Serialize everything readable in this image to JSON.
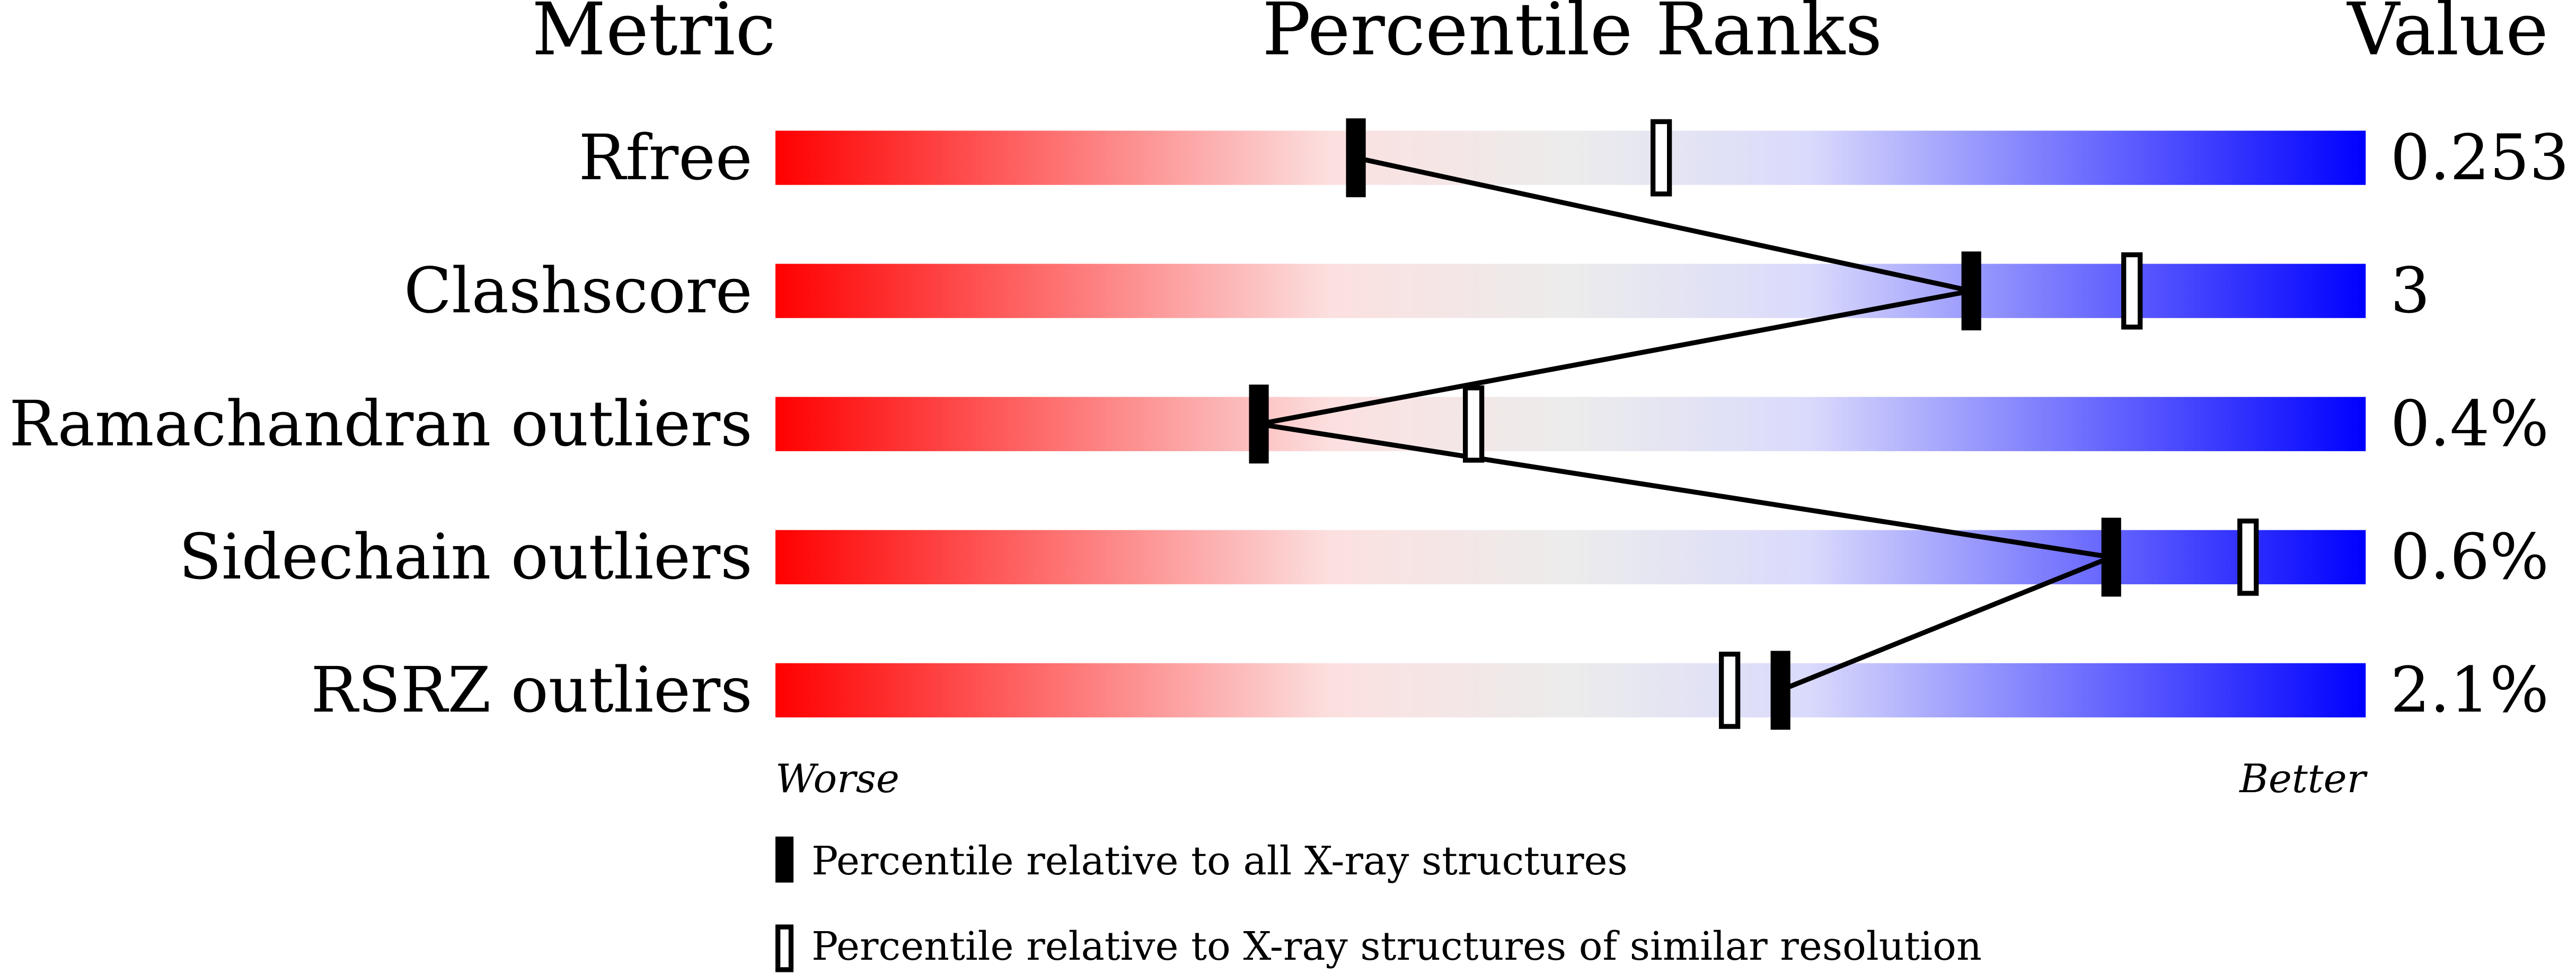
{
  "chart_data": {
    "type": "percentile-slider",
    "headers": {
      "metric": "Metric",
      "ranks": "Percentile Ranks",
      "value": "Value"
    },
    "xlim": [
      0,
      100
    ],
    "axis_labels": {
      "left": "Worse",
      "right": "Better"
    },
    "gradient_colors": {
      "worse": "#ff0000",
      "middle": "#ececec",
      "better": "#0000ff"
    },
    "metrics": [
      {
        "name": "Rfree",
        "value": "0.253",
        "percentile_all": 36.5,
        "percentile_similar": 55.7
      },
      {
        "name": "Clashscore",
        "value": "3",
        "percentile_all": 75.2,
        "percentile_similar": 85.3
      },
      {
        "name": "Ramachandran outliers",
        "value": "0.4%",
        "percentile_all": 30.4,
        "percentile_similar": 43.9
      },
      {
        "name": "Sidechain outliers",
        "value": "0.6%",
        "percentile_all": 84.0,
        "percentile_similar": 92.6
      },
      {
        "name": "RSRZ outliers",
        "value": "2.1%",
        "percentile_all": 63.2,
        "percentile_similar": 60.0
      }
    ],
    "legend": {
      "all": "Percentile relative to all X-ray structures",
      "similar": "Percentile relative to X-ray structures of similar resolution"
    }
  }
}
